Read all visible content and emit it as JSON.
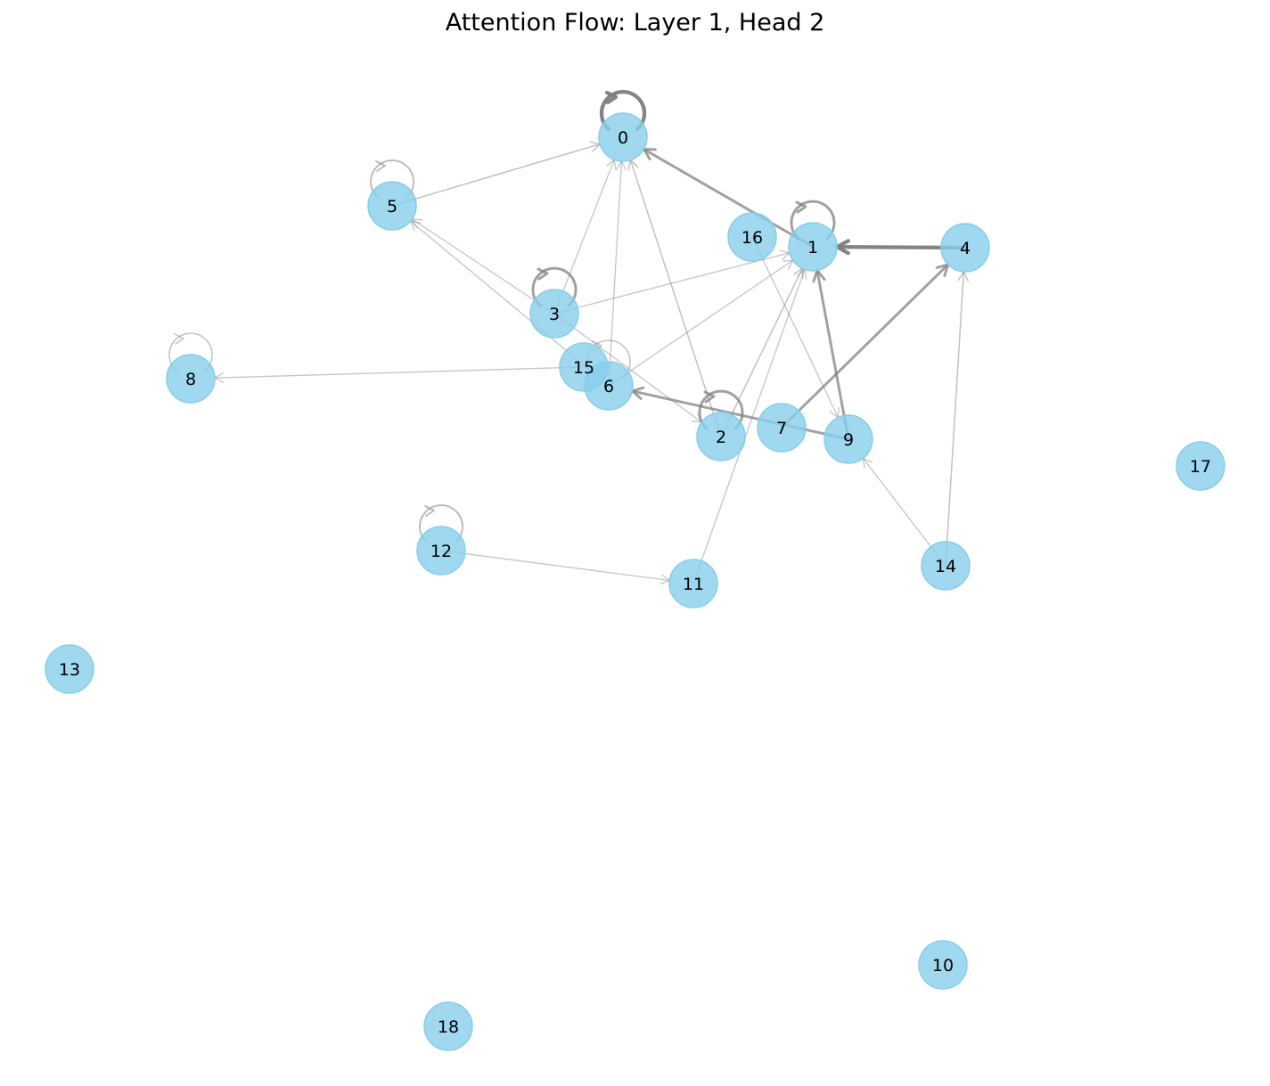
{
  "title": "Attention Flow: Layer 1, Head 2",
  "style": {
    "node_fill": "#87CEEB",
    "node_stroke": "#87CEEB",
    "edge_color": "#808080"
  },
  "graph": {
    "nodes": [
      {
        "id": "0",
        "label": "0"
      },
      {
        "id": "1",
        "label": "1"
      },
      {
        "id": "2",
        "label": "2"
      },
      {
        "id": "3",
        "label": "3"
      },
      {
        "id": "4",
        "label": "4"
      },
      {
        "id": "5",
        "label": "5"
      },
      {
        "id": "6",
        "label": "6"
      },
      {
        "id": "7",
        "label": "7"
      },
      {
        "id": "8",
        "label": "8"
      },
      {
        "id": "9",
        "label": "9"
      },
      {
        "id": "10",
        "label": "10"
      },
      {
        "id": "11",
        "label": "11"
      },
      {
        "id": "12",
        "label": "12"
      },
      {
        "id": "13",
        "label": "13"
      },
      {
        "id": "14",
        "label": "14"
      },
      {
        "id": "15",
        "label": "15"
      },
      {
        "id": "16",
        "label": "16"
      },
      {
        "id": "17",
        "label": "17"
      },
      {
        "id": "18",
        "label": "18"
      }
    ],
    "edges": [
      {
        "source": "0",
        "target": "0",
        "weight": 0.95
      },
      {
        "source": "1",
        "target": "1",
        "weight": 0.6
      },
      {
        "source": "2",
        "target": "2",
        "weight": 0.6
      },
      {
        "source": "3",
        "target": "3",
        "weight": 0.6
      },
      {
        "source": "5",
        "target": "5",
        "weight": 0.3
      },
      {
        "source": "8",
        "target": "8",
        "weight": 0.2
      },
      {
        "source": "12",
        "target": "12",
        "weight": 0.3
      },
      {
        "source": "6",
        "target": "6",
        "weight": 0.2
      },
      {
        "source": "4",
        "target": "1",
        "weight": 0.95
      },
      {
        "source": "1",
        "target": "0",
        "weight": 0.6
      },
      {
        "source": "9",
        "target": "1",
        "weight": 0.6
      },
      {
        "source": "7",
        "target": "4",
        "weight": 0.6
      },
      {
        "source": "9",
        "target": "6",
        "weight": 0.6
      },
      {
        "source": "5",
        "target": "0",
        "weight": 0.2
      },
      {
        "source": "3",
        "target": "0",
        "weight": 0.15
      },
      {
        "source": "6",
        "target": "0",
        "weight": 0.15
      },
      {
        "source": "2",
        "target": "0",
        "weight": 0.2
      },
      {
        "source": "3",
        "target": "1",
        "weight": 0.15
      },
      {
        "source": "6",
        "target": "1",
        "weight": 0.15
      },
      {
        "source": "2",
        "target": "1",
        "weight": 0.2
      },
      {
        "source": "11",
        "target": "1",
        "weight": 0.15
      },
      {
        "source": "3",
        "target": "5",
        "weight": 0.15
      },
      {
        "source": "6",
        "target": "5",
        "weight": 0.15
      },
      {
        "source": "15",
        "target": "8",
        "weight": 0.15
      },
      {
        "source": "16",
        "target": "9",
        "weight": 0.15
      },
      {
        "source": "14",
        "target": "9",
        "weight": 0.15
      },
      {
        "source": "14",
        "target": "4",
        "weight": 0.2
      },
      {
        "source": "12",
        "target": "11",
        "weight": 0.15
      },
      {
        "source": "3",
        "target": "2",
        "weight": 0.15
      }
    ]
  }
}
